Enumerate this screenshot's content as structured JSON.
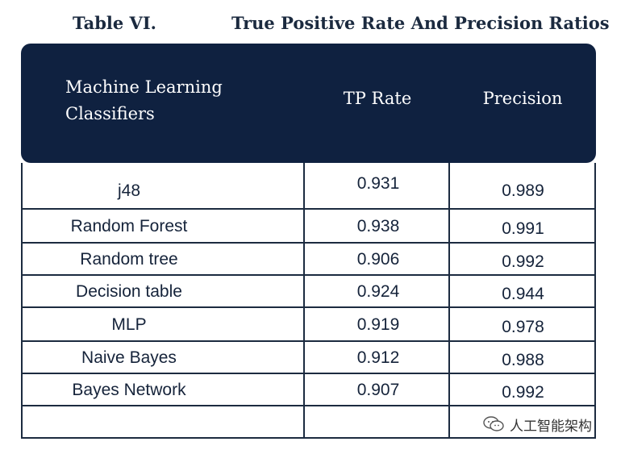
{
  "caption": {
    "label": "Table VI.",
    "title": "True Positive Rate And Precision Ratios"
  },
  "header": {
    "col1_line1": "Machine Learning",
    "col1_line2": "Classifiers",
    "col2": "TP Rate",
    "col3": "Precision"
  },
  "rows": [
    {
      "classifier": "j48",
      "tp_rate": "0.931",
      "precision": "0.989"
    },
    {
      "classifier": "Random Forest",
      "tp_rate": "0.938",
      "precision": "0.991"
    },
    {
      "classifier": "Random tree",
      "tp_rate": "0.906",
      "precision": "0.992"
    },
    {
      "classifier": "Decision table",
      "tp_rate": "0.924",
      "precision": "0.944"
    },
    {
      "classifier": "MLP",
      "tp_rate": "0.919",
      "precision": "0.978"
    },
    {
      "classifier": "Naive Bayes",
      "tp_rate": "0.912",
      "precision": "0.988"
    },
    {
      "classifier": "Bayes Network",
      "tp_rate": "0.907",
      "precision": "0.992"
    }
  ],
  "watermark": {
    "icon": "wechat-icon",
    "text": "人工智能架构"
  }
}
